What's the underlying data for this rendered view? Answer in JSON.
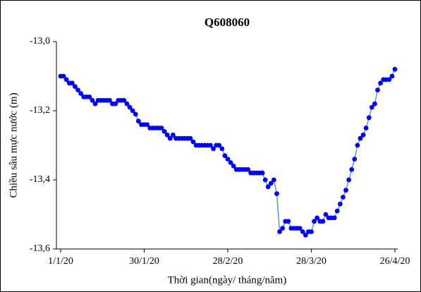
{
  "chart_data": {
    "type": "line",
    "title": "Q608060",
    "xlabel": "Thời gian(ngày/ tháng/năm)",
    "ylabel": "Chiều sâu mực nước (m)",
    "x": [
      "2020-01-01",
      "2020-01-02",
      "2020-01-03",
      "2020-01-04",
      "2020-01-05",
      "2020-01-06",
      "2020-01-07",
      "2020-01-08",
      "2020-01-09",
      "2020-01-10",
      "2020-01-11",
      "2020-01-12",
      "2020-01-13",
      "2020-01-14",
      "2020-01-15",
      "2020-01-16",
      "2020-01-17",
      "2020-01-18",
      "2020-01-19",
      "2020-01-20",
      "2020-01-21",
      "2020-01-22",
      "2020-01-23",
      "2020-01-24",
      "2020-01-25",
      "2020-01-26",
      "2020-01-27",
      "2020-01-28",
      "2020-01-29",
      "2020-01-30",
      "2020-01-31",
      "2020-02-01",
      "2020-02-02",
      "2020-02-03",
      "2020-02-04",
      "2020-02-05",
      "2020-02-06",
      "2020-02-07",
      "2020-02-08",
      "2020-02-09",
      "2020-02-10",
      "2020-02-11",
      "2020-02-12",
      "2020-02-13",
      "2020-02-14",
      "2020-02-15",
      "2020-02-16",
      "2020-02-17",
      "2020-02-18",
      "2020-02-19",
      "2020-02-20",
      "2020-02-21",
      "2020-02-22",
      "2020-02-23",
      "2020-02-24",
      "2020-02-25",
      "2020-02-26",
      "2020-02-27",
      "2020-02-28",
      "2020-02-29",
      "2020-03-01",
      "2020-03-02",
      "2020-03-03",
      "2020-03-04",
      "2020-03-05",
      "2020-03-06",
      "2020-03-07",
      "2020-03-08",
      "2020-03-09",
      "2020-03-10",
      "2020-03-11",
      "2020-03-12",
      "2020-03-13",
      "2020-03-14",
      "2020-03-15",
      "2020-03-16",
      "2020-03-17",
      "2020-03-18",
      "2020-03-19",
      "2020-03-20",
      "2020-03-21",
      "2020-03-22",
      "2020-03-23",
      "2020-03-24",
      "2020-03-25",
      "2020-03-26",
      "2020-03-27",
      "2020-03-28",
      "2020-03-29",
      "2020-03-30",
      "2020-03-31",
      "2020-04-01",
      "2020-04-02",
      "2020-04-03",
      "2020-04-04",
      "2020-04-05",
      "2020-04-06",
      "2020-04-07",
      "2020-04-08",
      "2020-04-09",
      "2020-04-10",
      "2020-04-11",
      "2020-04-12",
      "2020-04-13",
      "2020-04-14",
      "2020-04-15",
      "2020-04-16",
      "2020-04-17",
      "2020-04-18",
      "2020-04-19",
      "2020-04-20",
      "2020-04-21",
      "2020-04-22",
      "2020-04-23",
      "2020-04-24",
      "2020-04-25",
      "2020-04-26"
    ],
    "series": [
      {
        "color": "#0000ff",
        "line_color": "#5b9bd5",
        "values": [
          -13.1,
          -13.1,
          -13.11,
          -13.12,
          -13.12,
          -13.13,
          -13.14,
          -13.15,
          -13.16,
          -13.16,
          -13.16,
          -13.17,
          -13.18,
          -13.17,
          -13.17,
          -13.17,
          -13.17,
          -13.17,
          -13.18,
          -13.18,
          -13.17,
          -13.17,
          -13.17,
          -13.18,
          -13.19,
          -13.2,
          -13.21,
          -13.23,
          -13.24,
          -13.24,
          -13.24,
          -13.25,
          -13.25,
          -13.25,
          -13.25,
          -13.25,
          -13.26,
          -13.27,
          -13.28,
          -13.27,
          -13.28,
          -13.28,
          -13.28,
          -13.28,
          -13.28,
          -13.28,
          -13.29,
          -13.3,
          -13.3,
          -13.3,
          -13.3,
          -13.3,
          -13.3,
          -13.31,
          -13.3,
          -13.3,
          -13.31,
          -13.33,
          -13.34,
          -13.35,
          -13.36,
          -13.37,
          -13.37,
          -13.37,
          -13.37,
          -13.37,
          -13.38,
          -13.38,
          -13.38,
          -13.38,
          -13.38,
          -13.4,
          -13.42,
          -13.41,
          -13.4,
          -13.44,
          -13.55,
          -13.54,
          -13.52,
          -13.52,
          -13.54,
          -13.54,
          -13.54,
          -13.54,
          -13.55,
          -13.56,
          -13.55,
          -13.55,
          -13.52,
          -13.51,
          -13.52,
          -13.52,
          -13.5,
          -13.51,
          -13.51,
          -13.51,
          -13.49,
          -13.47,
          -13.45,
          -13.43,
          -13.4,
          -13.37,
          -13.34,
          -13.3,
          -13.28,
          -13.27,
          -13.25,
          -13.22,
          -13.19,
          -13.18,
          -13.14,
          -13.12,
          -13.11,
          -13.11,
          -13.11,
          -13.1,
          -13.08
        ]
      }
    ],
    "xlim": [
      "2020-01-01",
      "2020-04-26"
    ],
    "xticks": [
      {
        "value": "2020-01-01",
        "label": "1/1/20"
      },
      {
        "value": "2020-01-30",
        "label": "30/1/20"
      },
      {
        "value": "2020-02-28",
        "label": "28/2/20"
      },
      {
        "value": "2020-03-28",
        "label": "28/3/20"
      },
      {
        "value": "2020-04-26",
        "label": "26/4/20"
      }
    ],
    "ylim": [
      -13.6,
      -13.0
    ],
    "yticks": [
      {
        "value": -13.6,
        "label": "-13,6"
      },
      {
        "value": -13.4,
        "label": "-13,4"
      },
      {
        "value": -13.2,
        "label": "-13,2"
      },
      {
        "value": -13.0,
        "label": "-13,0"
      }
    ],
    "grid": false
  }
}
